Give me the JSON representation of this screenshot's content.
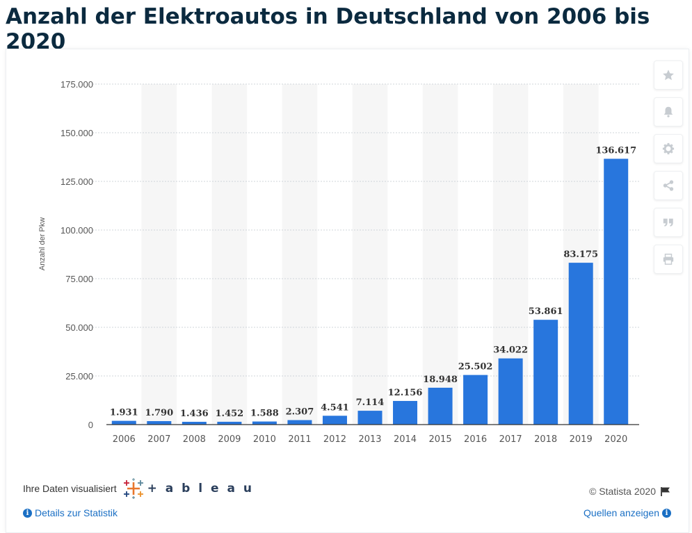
{
  "page": {
    "title": "Anzahl der Elektroautos in Deutschland von 2006 bis 2020"
  },
  "chart_data": {
    "type": "bar",
    "title": "",
    "xlabel": "",
    "ylabel": "Anzahl der Pkw",
    "ylim": [
      0,
      175000
    ],
    "yticks": [
      0,
      25000,
      50000,
      75000,
      100000,
      125000,
      150000,
      175000
    ],
    "ytick_labels": [
      "0",
      "25.000",
      "50.000",
      "75.000",
      "100.000",
      "125.000",
      "150.000",
      "175.000"
    ],
    "categories": [
      "2006",
      "2007",
      "2008",
      "2009",
      "2010",
      "2011",
      "2012",
      "2013",
      "2014",
      "2015",
      "2016",
      "2017",
      "2018",
      "2019",
      "2020"
    ],
    "values": [
      1931,
      1790,
      1436,
      1452,
      1588,
      2307,
      4541,
      7114,
      12156,
      18948,
      25502,
      34022,
      53861,
      83175,
      136617
    ],
    "data_labels": [
      "1.931",
      "1.790",
      "1.436",
      "1.452",
      "1.588",
      "2.307",
      "4.541",
      "7.114",
      "12.156",
      "18.948",
      "25.502",
      "34.022",
      "53.861",
      "83.175",
      "136.617"
    ],
    "grid": true,
    "colors": {
      "bar": "#2876dd",
      "band": "#f6f6f6",
      "grid": "#cfd4d9",
      "axis_text": "#555555",
      "label_text": "#333333"
    }
  },
  "sidebar": {
    "buttons": [
      {
        "name": "favorite-button",
        "icon": "star-icon"
      },
      {
        "name": "notification-button",
        "icon": "bell-icon"
      },
      {
        "name": "settings-button",
        "icon": "gear-icon"
      },
      {
        "name": "share-button",
        "icon": "share-icon"
      },
      {
        "name": "cite-button",
        "icon": "quote-icon"
      },
      {
        "name": "print-button",
        "icon": "print-icon"
      }
    ]
  },
  "footer": {
    "visualized_by": "Ihre Daten visualisiert",
    "tableau_word": "+ a b l e a u",
    "copyright": "© Statista 2020",
    "details_link": "Details zur Statistik",
    "sources_link": "Quellen anzeigen"
  }
}
